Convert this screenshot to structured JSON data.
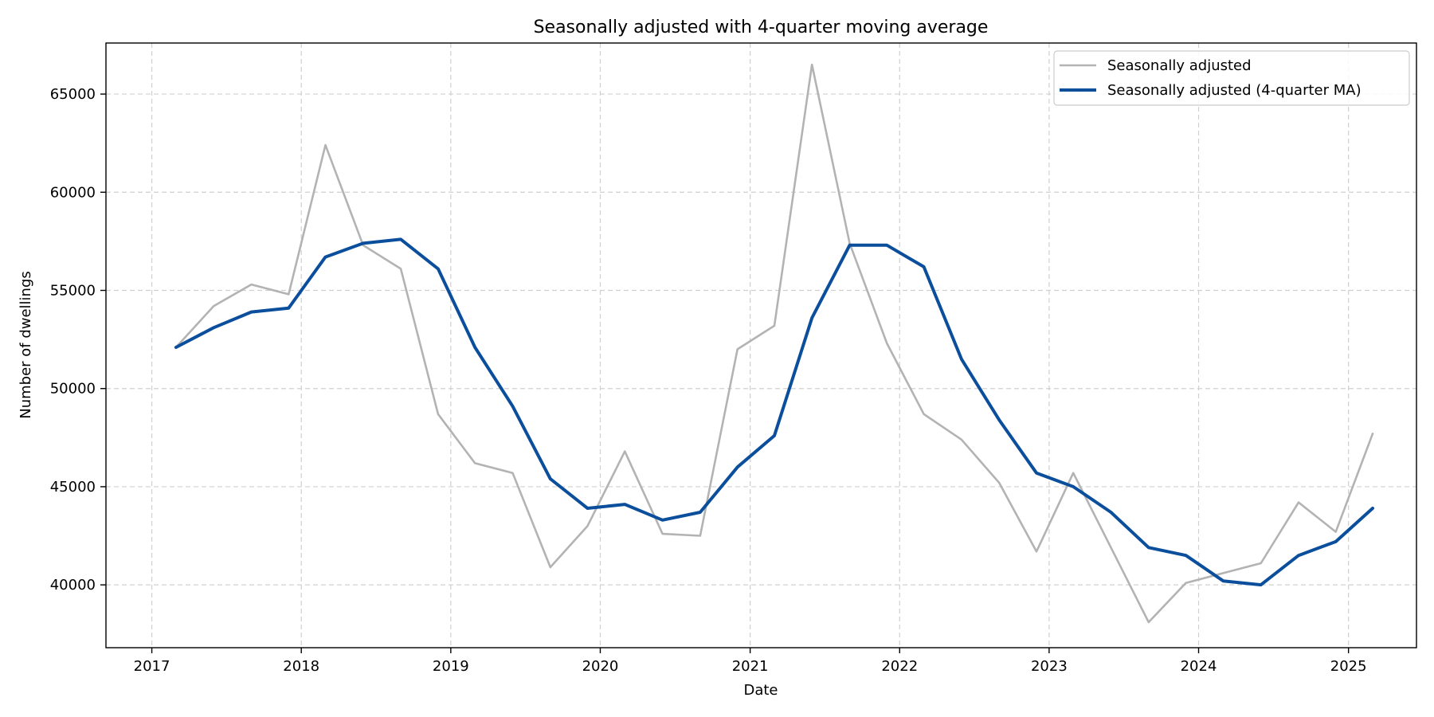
{
  "chart_data": {
    "type": "line",
    "title": "Seasonally adjusted with 4-quarter moving average",
    "xlabel": "Date",
    "ylabel": "Number of dwellings",
    "x_tick_labels": [
      "2017",
      "2018",
      "2019",
      "2020",
      "2021",
      "2022",
      "2023",
      "2024",
      "2025"
    ],
    "y_tick_labels": [
      "40000",
      "45000",
      "50000",
      "55000",
      "60000",
      "65000"
    ],
    "xlim": [
      "2016-09-11",
      "2025-06-16"
    ],
    "ylim": [
      36800,
      67600
    ],
    "grid": true,
    "legend_position": "top-right",
    "x": [
      "2017-03-01",
      "2017-06-01",
      "2017-09-01",
      "2017-12-01",
      "2018-03-01",
      "2018-06-01",
      "2018-09-01",
      "2018-12-01",
      "2019-03-01",
      "2019-06-01",
      "2019-09-01",
      "2019-12-01",
      "2020-03-01",
      "2020-06-01",
      "2020-09-01",
      "2020-12-01",
      "2021-03-01",
      "2021-06-01",
      "2021-09-01",
      "2021-12-01",
      "2022-03-01",
      "2022-06-01",
      "2022-09-01",
      "2022-12-01",
      "2023-03-01",
      "2023-06-01",
      "2023-09-01",
      "2023-12-01",
      "2024-03-01",
      "2024-06-01",
      "2024-09-01",
      "2024-12-01",
      "2025-03-01"
    ],
    "series": [
      {
        "name": "Seasonally adjusted",
        "color": "#b3b3b3",
        "values": [
          52100,
          54200,
          55300,
          54800,
          62400,
          57300,
          56100,
          48700,
          46200,
          45700,
          40900,
          43000,
          46800,
          42600,
          42500,
          52000,
          53200,
          66500,
          57400,
          52300,
          48700,
          47400,
          45200,
          41700,
          45700,
          41900,
          38100,
          40100,
          40600,
          41100,
          44200,
          42700,
          47700
        ]
      },
      {
        "name": "Seasonally adjusted (4-quarter MA)",
        "color": "#0b4f9c",
        "values": [
          52100,
          53100,
          53900,
          54100,
          56700,
          57400,
          57600,
          56100,
          52100,
          49100,
          45400,
          43900,
          44100,
          43300,
          43700,
          46000,
          47600,
          53600,
          57300,
          57300,
          56200,
          51500,
          48400,
          45700,
          45000,
          43700,
          41900,
          41500,
          40200,
          40000,
          41500,
          42200,
          43900
        ]
      }
    ]
  }
}
